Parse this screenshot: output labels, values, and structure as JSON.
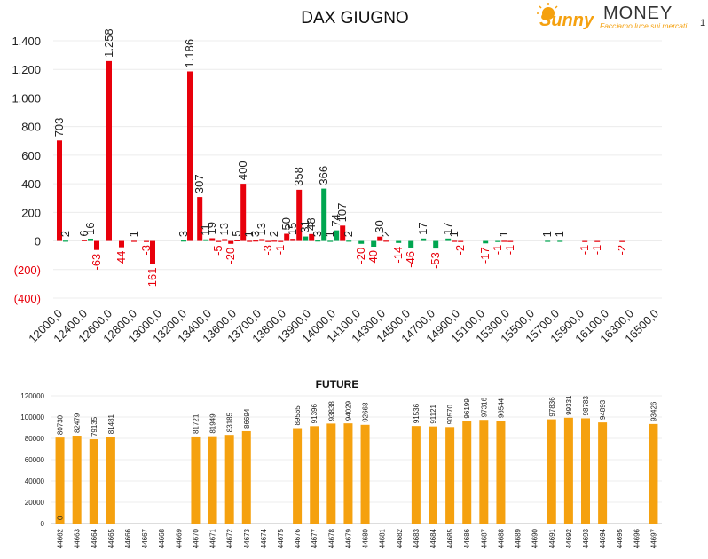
{
  "page_number": "1",
  "logo": {
    "brand_script": "Sunny",
    "brand_caps": "MONEY",
    "tagline": "Facciamo luce sui mercati"
  },
  "colors": {
    "red": "#e8000b",
    "green": "#00a650",
    "orange": "#f5a10f",
    "neg_label": "#e8000b"
  },
  "chart_data": [
    {
      "type": "bar",
      "title": "DAX GIUGNO",
      "ylim": [
        -400,
        1400
      ],
      "y_ticks": [
        -400,
        -200,
        0,
        200,
        400,
        600,
        800,
        1000,
        1200,
        1400
      ],
      "y_tick_labels": [
        "(400)",
        "(200)",
        "0",
        "200",
        "400",
        "600",
        "800",
        "1.000",
        "1.200",
        "1.400"
      ],
      "x_tick_labels": [
        "12000,0",
        "12400,0",
        "12600,0",
        "12800,0",
        "13000,0",
        "13200,0",
        "13400,0",
        "13600,0",
        "13700,0",
        "13800,0",
        "13900,0",
        "14000,0",
        "14100,0",
        "14300,0",
        "14500,0",
        "14700,0",
        "14900,0",
        "15100,0",
        "15300,0",
        "15500,0",
        "15700,0",
        "15900,0",
        "16100,0",
        "16300,0",
        "16500,0"
      ],
      "bars": [
        {
          "c": 0,
          "s": "r",
          "v": 703,
          "label": "703"
        },
        {
          "c": 0.5,
          "s": "g",
          "v": 2,
          "label": "2"
        },
        {
          "c": 2,
          "s": "r",
          "v": 6,
          "label": "6"
        },
        {
          "c": 2.5,
          "s": "g",
          "v": 16,
          "label": "16"
        },
        {
          "c": 3,
          "s": "r",
          "v": -63,
          "label": "-63"
        },
        {
          "c": 4,
          "s": "r",
          "v": 1258,
          "label": "1.258"
        },
        {
          "c": 5,
          "s": "r",
          "v": -44,
          "label": "-44"
        },
        {
          "c": 6,
          "s": "r",
          "v": 1,
          "label": "1"
        },
        {
          "c": 7,
          "s": "r",
          "v": -3,
          "label": "-3"
        },
        {
          "c": 7.5,
          "s": "r",
          "v": -161,
          "label": "-161"
        },
        {
          "c": 10,
          "s": "g",
          "v": 3,
          "label": "3"
        },
        {
          "c": 10.5,
          "s": "r",
          "v": 1186,
          "label": "1.186"
        },
        {
          "c": 11.3,
          "s": "r",
          "v": 307,
          "label": "307"
        },
        {
          "c": 11.8,
          "s": "g",
          "v": 11,
          "label": "11"
        },
        {
          "c": 12.3,
          "s": "r",
          "v": 19,
          "label": "19"
        },
        {
          "c": 12.8,
          "s": "r",
          "v": -5,
          "label": "-5"
        },
        {
          "c": 13.3,
          "s": "r",
          "v": 13,
          "label": "13"
        },
        {
          "c": 13.8,
          "s": "r",
          "v": -20,
          "label": "-20"
        },
        {
          "c": 14.3,
          "s": "r",
          "v": 5,
          "label": "5"
        },
        {
          "c": 14.8,
          "s": "r",
          "v": 400,
          "label": "400"
        },
        {
          "c": 15.3,
          "s": "r",
          "v": 1,
          "label": "1"
        },
        {
          "c": 15.8,
          "s": "r",
          "v": 3,
          "label": "3"
        },
        {
          "c": 16.3,
          "s": "r",
          "v": 13,
          "label": "13"
        },
        {
          "c": 16.8,
          "s": "r",
          "v": -3,
          "label": "-3"
        },
        {
          "c": 17.3,
          "s": "r",
          "v": 2,
          "label": "2"
        },
        {
          "c": 17.8,
          "s": "r",
          "v": -1,
          "label": "-1"
        },
        {
          "c": 18.3,
          "s": "r",
          "v": 50,
          "label": "50"
        },
        {
          "c": 18.8,
          "s": "r",
          "v": 15,
          "label": "15"
        },
        {
          "c": 19.3,
          "s": "r",
          "v": 358,
          "label": "358"
        },
        {
          "c": 19.8,
          "s": "g",
          "v": 31,
          "label": "31"
        },
        {
          "c": 20.3,
          "s": "r",
          "v": 48,
          "label": "48"
        },
        {
          "c": 20.8,
          "s": "g",
          "v": 3,
          "label": "3"
        },
        {
          "c": 21.3,
          "s": "g",
          "v": 366,
          "label": "366"
        },
        {
          "c": 21.8,
          "s": "g",
          "v": 1,
          "label": "1"
        },
        {
          "c": 22.3,
          "s": "g",
          "v": 74,
          "label": "74"
        },
        {
          "c": 22.8,
          "s": "r",
          "v": 107,
          "label": "107"
        },
        {
          "c": 23.3,
          "s": "g",
          "v": 2,
          "label": "2"
        },
        {
          "c": 24.3,
          "s": "g",
          "v": -20,
          "label": "-20"
        },
        {
          "c": 25.3,
          "s": "g",
          "v": -40,
          "label": "-40"
        },
        {
          "c": 25.8,
          "s": "r",
          "v": 30,
          "label": "30"
        },
        {
          "c": 26.3,
          "s": "r",
          "v": 2,
          "label": "2"
        },
        {
          "c": 27.3,
          "s": "g",
          "v": -14,
          "label": "-14"
        },
        {
          "c": 28.3,
          "s": "g",
          "v": -46,
          "label": "-46"
        },
        {
          "c": 29.3,
          "s": "g",
          "v": 17,
          "label": "17"
        },
        {
          "c": 30.3,
          "s": "g",
          "v": -53,
          "label": "-53"
        },
        {
          "c": 31.3,
          "s": "g",
          "v": 17,
          "label": "17"
        },
        {
          "c": 31.8,
          "s": "r",
          "v": 1,
          "label": "1"
        },
        {
          "c": 32.3,
          "s": "r",
          "v": -2,
          "label": "-2"
        },
        {
          "c": 34.3,
          "s": "g",
          "v": -17,
          "label": "-17"
        },
        {
          "c": 35.3,
          "s": "g",
          "v": -1,
          "label": "-1"
        },
        {
          "c": 35.8,
          "s": "r",
          "v": 1,
          "label": "1"
        },
        {
          "c": 36.3,
          "s": "r",
          "v": -1,
          "label": "-1"
        },
        {
          "c": 39.3,
          "s": "g",
          "v": 1,
          "label": "1"
        },
        {
          "c": 40.3,
          "s": "g",
          "v": 1,
          "label": "1"
        },
        {
          "c": 42.3,
          "s": "r",
          "v": -1,
          "label": "-1"
        },
        {
          "c": 43.3,
          "s": "r",
          "v": -1,
          "label": "-1"
        },
        {
          "c": 45.3,
          "s": "r",
          "v": -2,
          "label": "-2"
        }
      ]
    },
    {
      "type": "bar",
      "title": "FUTURE",
      "ylim": [
        0,
        120000
      ],
      "y_ticks": [
        0,
        20000,
        40000,
        60000,
        80000,
        100000,
        120000
      ],
      "y_tick_labels": [
        "0",
        "20000",
        "40000",
        "60000",
        "80000",
        "100000",
        "120000"
      ],
      "categories": [
        "44662",
        "44663",
        "44664",
        "44665",
        "44666",
        "44667",
        "44668",
        "44669",
        "44670",
        "44671",
        "44672",
        "44673",
        "44674",
        "44675",
        "44676",
        "44677",
        "44678",
        "44679",
        "44680",
        "44681",
        "44682",
        "44683",
        "44684",
        "44685",
        "44686",
        "44687",
        "44688",
        "44689",
        "44690",
        "44691",
        "44692",
        "44693",
        "44694",
        "44695",
        "44696",
        "44697"
      ],
      "values": [
        80730,
        82479,
        79135,
        81481,
        null,
        null,
        null,
        null,
        81721,
        81949,
        83185,
        86694,
        null,
        null,
        89565,
        91396,
        93838,
        94029,
        92668,
        null,
        null,
        91536,
        91121,
        90570,
        96199,
        97316,
        96544,
        null,
        null,
        97836,
        99331,
        98783,
        94893,
        null,
        null,
        93426
      ],
      "extra_label": {
        "index": 0,
        "text": "0"
      }
    }
  ]
}
